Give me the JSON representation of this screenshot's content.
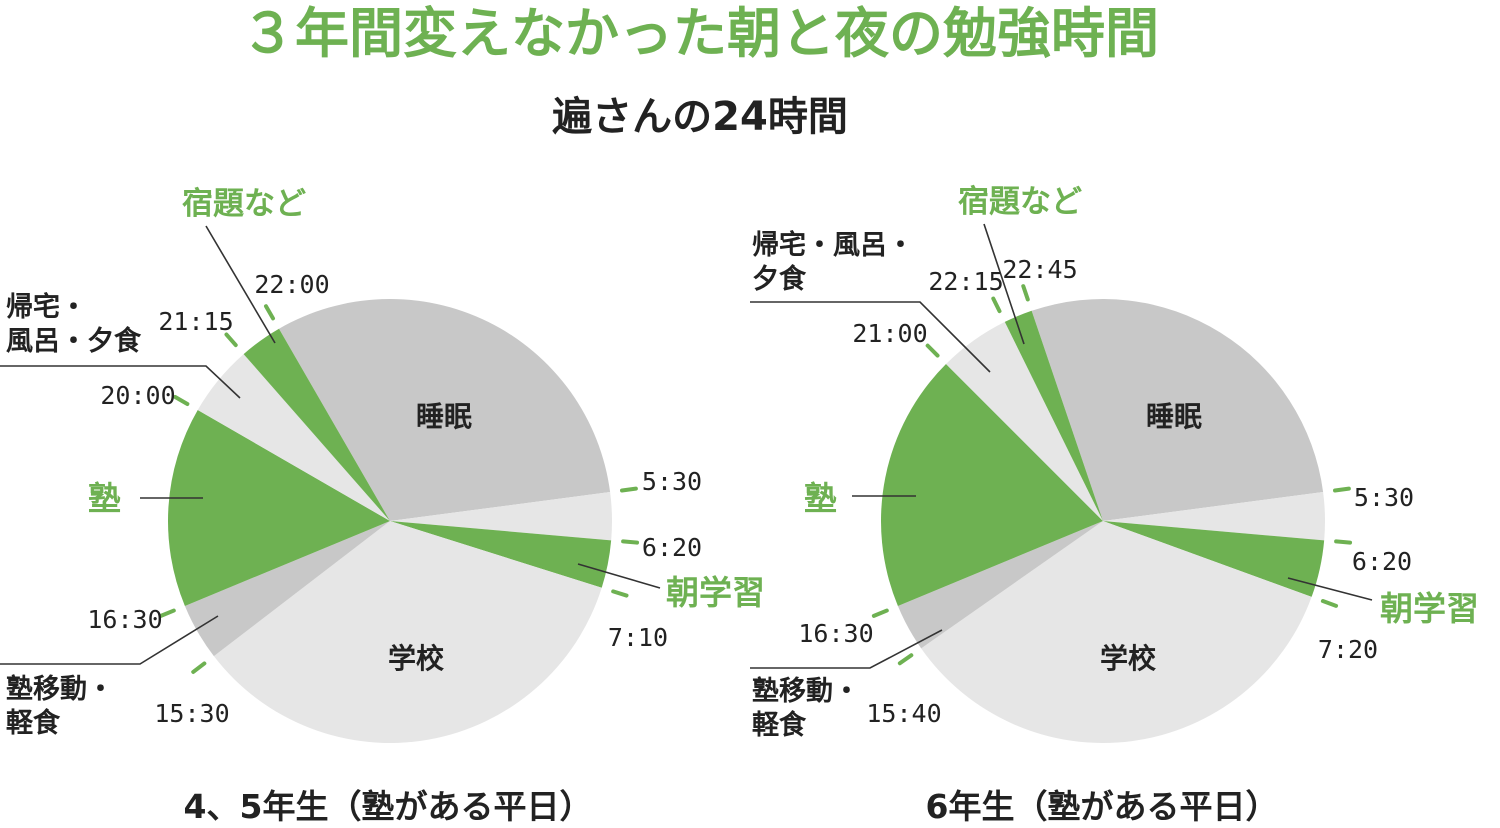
{
  "title": "３年間変えなかった朝と夜の勉強時間",
  "subtitle": "遍さんの24時間",
  "colors": {
    "green": "#6eb152",
    "dark_gray": "#c8c8c8",
    "light_gray": "#e6e6e6"
  },
  "chart_data": [
    {
      "type": "pie",
      "caption": "4、5年生（塾がある平日）",
      "unit": "time of day (24h clock, starting 0:00 at top, clockwise)",
      "segments": [
        {
          "name": "睡眠",
          "start": "22:00",
          "end": "5:30",
          "color": "dark_gray"
        },
        {
          "name": "",
          "start": "5:30",
          "end": "6:20",
          "color": "light_gray"
        },
        {
          "name": "朝学習",
          "start": "6:20",
          "end": "7:10",
          "color": "green"
        },
        {
          "name": "学校",
          "start": "7:10",
          "end": "15:30",
          "color": "light_gray"
        },
        {
          "name": "塾移動・軽食",
          "start": "15:30",
          "end": "16:30",
          "color": "dark_gray"
        },
        {
          "name": "塾",
          "start": "16:30",
          "end": "20:00",
          "color": "green"
        },
        {
          "name": "帰宅・風呂・夕食",
          "start": "20:00",
          "end": "21:15",
          "color": "light_gray"
        },
        {
          "name": "宿題など",
          "start": "21:15",
          "end": "22:00",
          "color": "green"
        }
      ],
      "time_labels": [
        "22:00",
        "5:30",
        "6:20",
        "7:10",
        "15:30",
        "16:30",
        "20:00",
        "21:15"
      ]
    },
    {
      "type": "pie",
      "caption": "6年生（塾がある平日）",
      "unit": "time of day (24h clock, starting 0:00 at top, clockwise)",
      "segments": [
        {
          "name": "睡眠",
          "start": "22:45",
          "end": "5:30",
          "color": "dark_gray"
        },
        {
          "name": "",
          "start": "5:30",
          "end": "6:20",
          "color": "light_gray"
        },
        {
          "name": "朝学習",
          "start": "6:20",
          "end": "7:20",
          "color": "green"
        },
        {
          "name": "学校",
          "start": "7:20",
          "end": "15:40",
          "color": "light_gray"
        },
        {
          "name": "塾移動・軽食",
          "start": "15:40",
          "end": "16:30",
          "color": "dark_gray"
        },
        {
          "name": "塾",
          "start": "16:30",
          "end": "21:00",
          "color": "green"
        },
        {
          "name": "帰宅・風呂・夕食",
          "start": "21:00",
          "end": "22:15",
          "color": "light_gray"
        },
        {
          "name": "宿題など",
          "start": "22:15",
          "end": "22:45",
          "color": "green"
        }
      ],
      "time_labels": [
        "22:45",
        "22:15",
        "21:00",
        "5:30",
        "6:20",
        "7:20",
        "15:40",
        "16:30"
      ]
    }
  ],
  "labels": {
    "left": {
      "sleep": "睡眠",
      "school": "学校",
      "juku": "塾",
      "asa": "朝学習",
      "homework": "宿題など",
      "home_l1": "帰宅・",
      "home_l2": "風呂・夕食",
      "move_l1": "塾移動・",
      "move_l2": "軽食"
    },
    "right": {
      "sleep": "睡眠",
      "school": "学校",
      "juku": "塾",
      "asa": "朝学習",
      "homework": "宿題など",
      "home_l1": "帰宅・風呂・",
      "home_l2": "夕食",
      "move_l1": "塾移動・",
      "move_l2": "軽食"
    }
  }
}
